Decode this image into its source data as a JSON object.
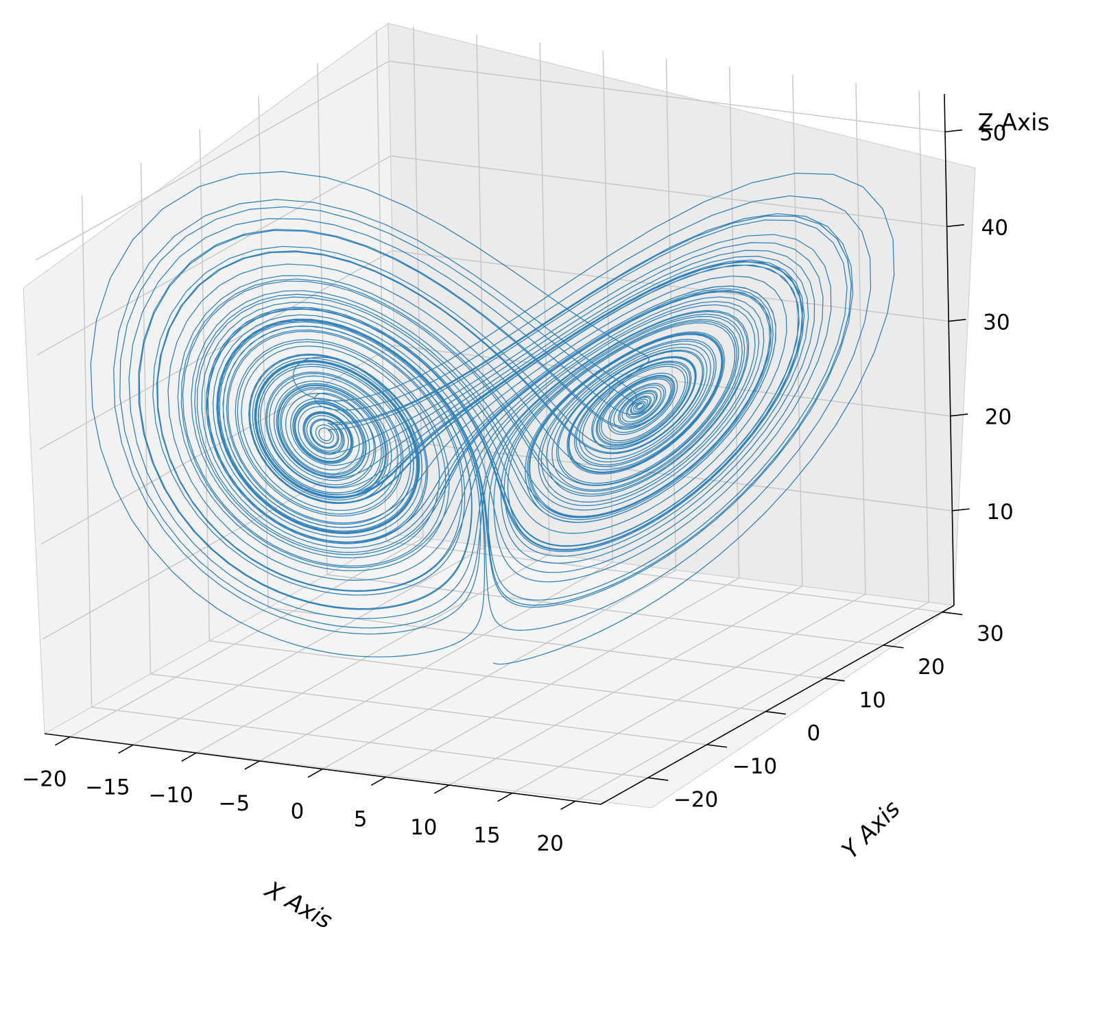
{
  "chart_data": {
    "type": "line",
    "projection": "3d",
    "title": "",
    "xlabel": "X Axis",
    "ylabel": "Y Axis",
    "zlabel": "Z Axis",
    "x_ticks": [
      "−20",
      "−15",
      "−10",
      "−5",
      "0",
      "5",
      "10",
      "15",
      "20"
    ],
    "y_ticks": [
      "−20",
      "−10",
      "0",
      "10",
      "20",
      "30"
    ],
    "z_ticks": [
      "10",
      "20",
      "30",
      "40",
      "50"
    ],
    "xlim": [
      -22,
      22
    ],
    "ylim": [
      -28,
      32
    ],
    "zlim": [
      0,
      54
    ],
    "grid": true,
    "pane_color": "#f2f2f2",
    "grid_color": "#c8c8c8",
    "series": [
      {
        "name": "",
        "color": "#1f77b4",
        "generator": "lorenz",
        "parameters": {
          "sigma": 10,
          "rho": 28,
          "beta": 2.6667
        },
        "initial_point": [
          0,
          1,
          1.05
        ],
        "dt": 0.01,
        "steps": 10000
      }
    ]
  }
}
